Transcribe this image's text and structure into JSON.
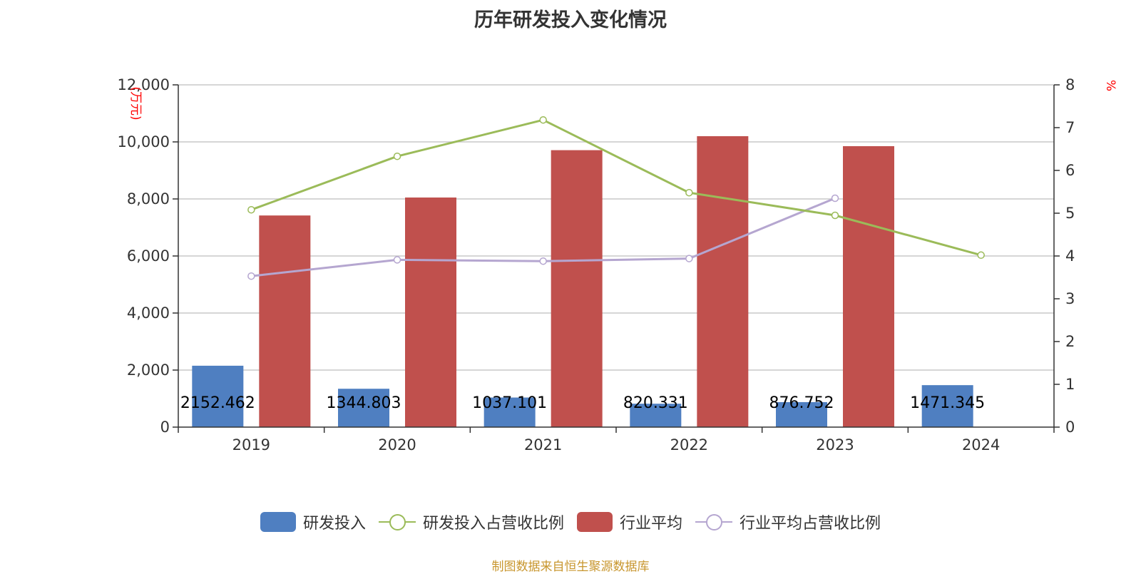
{
  "title": "历年研发投入变化情况",
  "left_unit": "(万元)",
  "right_unit": "%",
  "source": "制图数据来自恒生聚源数据库",
  "colors": {
    "rd_bar": "#4f7fc1",
    "industry_bar": "#c0504d",
    "rd_ratio_line": "#9bbb59",
    "industry_ratio_line": "#b5a6d0",
    "grid": "#c8c8c8",
    "axis": "#333333"
  },
  "chart_data": {
    "type": "bar",
    "categories": [
      "2019",
      "2020",
      "2021",
      "2022",
      "2023",
      "2024"
    ],
    "y_left": {
      "ylim": [
        0,
        12000
      ],
      "ticks": [
        "0",
        "2,000",
        "4,000",
        "6,000",
        "8,000",
        "10,000",
        "12,000"
      ],
      "tick_values": [
        0,
        2000,
        4000,
        6000,
        8000,
        10000,
        12000
      ]
    },
    "y_right": {
      "ylim": [
        0,
        8
      ],
      "ticks": [
        "0",
        "1",
        "2",
        "3",
        "4",
        "5",
        "6",
        "7",
        "8"
      ],
      "tick_values": [
        0,
        1,
        2,
        3,
        4,
        5,
        6,
        7,
        8
      ]
    },
    "series": [
      {
        "name": "研发投入",
        "type": "bar",
        "axis": "left",
        "values": [
          2152.462,
          1344.803,
          1037.101,
          820.331,
          876.752,
          1471.345
        ],
        "labels": [
          "2152.462",
          "1344.803",
          "1037.101",
          "820.331",
          "876.752",
          "1471.345"
        ]
      },
      {
        "name": "研发投入占营收比例",
        "type": "line",
        "axis": "right",
        "values": [
          5.08,
          6.33,
          7.18,
          5.48,
          4.95,
          4.02
        ]
      },
      {
        "name": "行业平均",
        "type": "bar",
        "axis": "left",
        "values": [
          7420,
          8050,
          9710,
          10200,
          9850,
          null
        ]
      },
      {
        "name": "行业平均占营收比例",
        "type": "line",
        "axis": "right",
        "values": [
          3.53,
          3.91,
          3.88,
          3.94,
          5.35,
          null
        ]
      }
    ],
    "grid": true,
    "legend_position": "bottom"
  }
}
